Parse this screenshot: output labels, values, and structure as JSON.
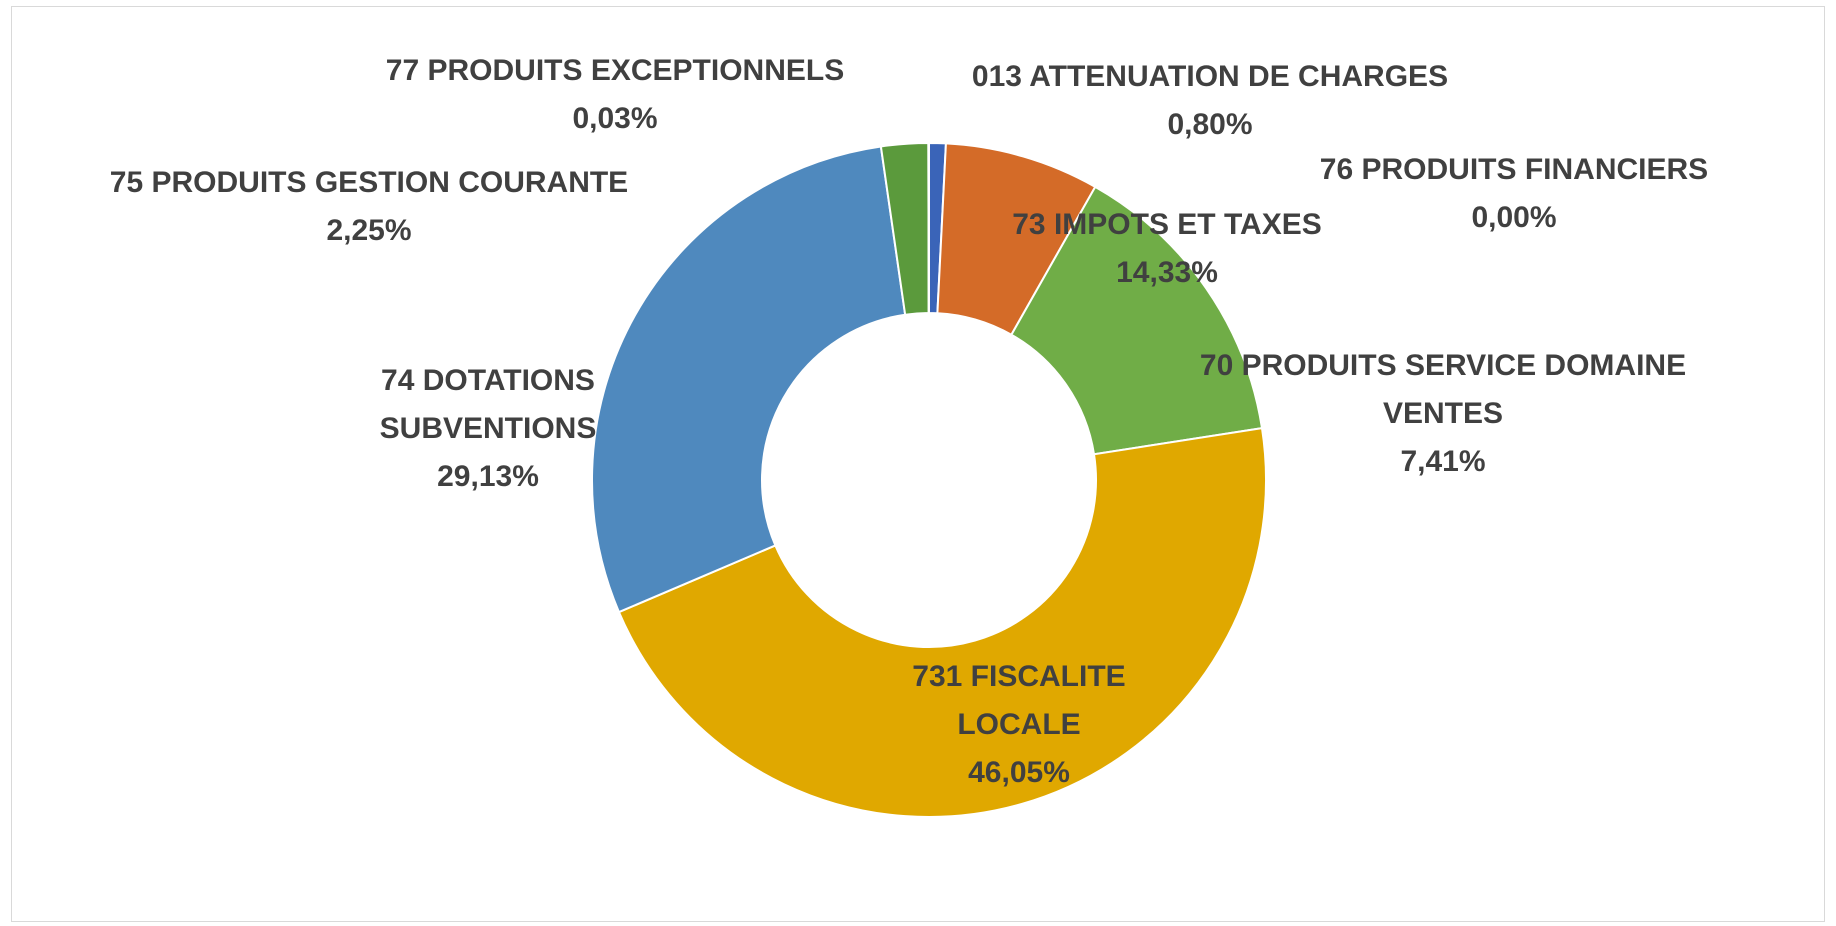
{
  "chart_data": {
    "type": "pie",
    "categories": [
      "013 ATTENUATION DE CHARGES",
      "76 PRODUITS FINANCIERS",
      "70 PRODUITS SERVICE DOMAINE VENTES",
      "73 IMPOTS ET TAXES",
      "731 FISCALITE LOCALE",
      "74 DOTATIONS SUBVENTIONS",
      "75 PRODUITS GESTION COURANTE",
      "77 PRODUITS EXCEPTIONNELS"
    ],
    "values": [
      0.8,
      0,
      7.41,
      14.33,
      46.05,
      29.13,
      2.25,
      0.03
    ],
    "value_labels": [
      "0,80%",
      "0,00%",
      "7,41%",
      "14,33%",
      "46,05%",
      "29,13%",
      "2,25%",
      "0,03%"
    ],
    "colors": [
      "#3a64b8",
      "#264478",
      "#d46b28",
      "#70ad47",
      "#e0a800",
      "#4f89be",
      "#5b9a3c",
      "#9e480e"
    ]
  }
}
